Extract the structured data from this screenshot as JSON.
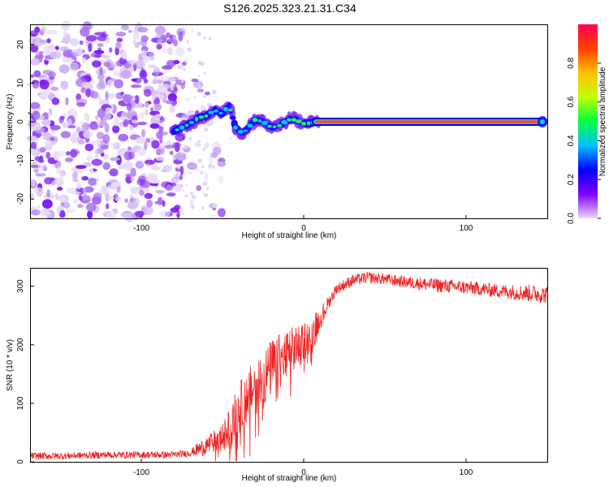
{
  "chart_data": [
    {
      "type": "heatmap",
      "title": "S126.2025.323.21.31.C34",
      "xlabel": "Height of straight line (km)",
      "ylabel": "Frequency (Hz)",
      "xlim": [
        -168,
        150
      ],
      "ylim": [
        -25,
        25
      ],
      "xticks": [
        -100,
        0,
        100
      ],
      "xtick_labels": [
        "-100",
        "0",
        "100"
      ],
      "yticks": [
        -20,
        -10,
        0,
        10,
        20
      ],
      "ytick_labels": [
        "-20",
        "-10",
        "0",
        "10",
        "20"
      ],
      "noise_region_x": [
        -168,
        -75
      ],
      "signal_track": {
        "x": [
          -80,
          -75,
          -70,
          -65,
          -60,
          -55,
          -50,
          -46,
          -42,
          -38,
          -35,
          -30,
          -25,
          -20,
          -15,
          -10,
          -5,
          0,
          5,
          10,
          20,
          40,
          60,
          80,
          100,
          120,
          140,
          150
        ],
        "freq": [
          -2.5,
          -1.5,
          -0.5,
          1.0,
          1.5,
          3.0,
          2.0,
          4.5,
          -1.5,
          -3.0,
          -2.0,
          0.5,
          0.0,
          -1.5,
          -1.0,
          0.5,
          0.5,
          -0.5,
          -0.3,
          0.0,
          0.0,
          0.0,
          0.0,
          0.0,
          0.0,
          0.0,
          0.0,
          0.0
        ]
      },
      "colorbar": {
        "label": "Normalized spectral amplitude",
        "range": [
          0,
          1
        ],
        "ticks": [
          0.0,
          0.2,
          0.4,
          0.6,
          0.8
        ],
        "tick_labels": [
          "0.0",
          "0.2",
          "0.4",
          "0.6",
          "0.8"
        ],
        "colors": [
          "#e8d9f7",
          "#8000ff",
          "#0000ff",
          "#00c0ff",
          "#00ff40",
          "#c0ff00",
          "#ffc000",
          "#ff4000",
          "#ff0050"
        ]
      }
    },
    {
      "type": "line",
      "xlabel": "Height of straight line (km)",
      "ylabel": "SNR (10 * v/v)",
      "xlim": [
        -168,
        150
      ],
      "ylim": [
        0,
        330
      ],
      "xticks": [
        -100,
        0,
        100
      ],
      "xtick_labels": [
        "-100",
        "0",
        "100"
      ],
      "yticks": [
        0,
        100,
        200,
        300
      ],
      "ytick_labels": [
        "0",
        "100",
        "200",
        "300"
      ],
      "series": [
        {
          "name": "SNR",
          "color": "#ee2222",
          "x": [
            -168,
            -150,
            -120,
            -100,
            -80,
            -70,
            -62,
            -55,
            -50,
            -45,
            -40,
            -35,
            -30,
            -25,
            -20,
            -15,
            -10,
            -5,
            0,
            5,
            10,
            15,
            20,
            30,
            40,
            50,
            60,
            80,
            100,
            120,
            140,
            150
          ],
          "y": [
            10,
            10,
            12,
            12,
            12,
            15,
            25,
            35,
            40,
            60,
            90,
            110,
            130,
            140,
            160,
            170,
            180,
            195,
            205,
            220,
            245,
            270,
            295,
            310,
            315,
            312,
            308,
            302,
            298,
            292,
            288,
            285
          ],
          "noise_amplitude": [
            6,
            6,
            6,
            6,
            6,
            6,
            15,
            20,
            25,
            40,
            45,
            45,
            50,
            50,
            50,
            50,
            45,
            40,
            35,
            30,
            20,
            12,
            10,
            10,
            10,
            10,
            10,
            12,
            12,
            12,
            15,
            15
          ]
        }
      ]
    }
  ]
}
